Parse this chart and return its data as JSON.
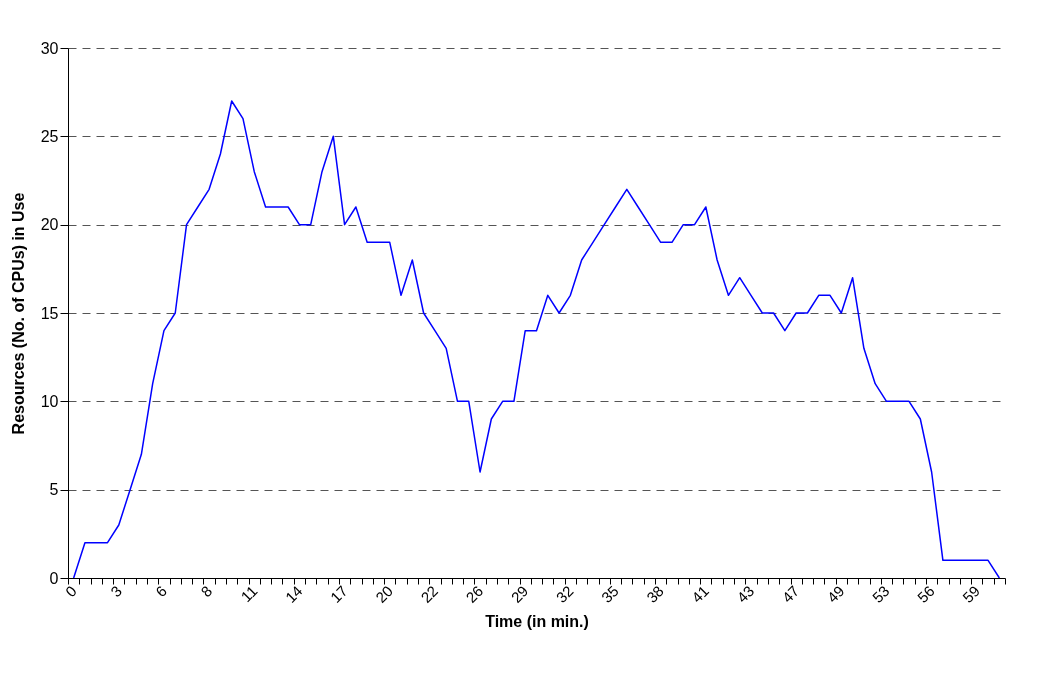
{
  "chart_data": {
    "type": "line",
    "xlabel": "Time (in min.)",
    "ylabel": "Resources (No. of CPUs) in Use",
    "categories": [
      "0",
      null,
      null,
      null,
      "3",
      null,
      null,
      null,
      "6",
      null,
      null,
      null,
      "8",
      null,
      null,
      null,
      "11",
      null,
      null,
      null,
      "14",
      null,
      null,
      null,
      "17",
      null,
      null,
      null,
      "20",
      null,
      null,
      null,
      "22",
      null,
      null,
      null,
      "26",
      null,
      null,
      null,
      "29",
      null,
      null,
      null,
      "32",
      null,
      null,
      null,
      "35",
      null,
      null,
      null,
      "38",
      null,
      null,
      null,
      "41",
      null,
      null,
      null,
      "43",
      null,
      null,
      null,
      "47",
      null,
      null,
      null,
      "49",
      null,
      null,
      null,
      "53",
      null,
      null,
      null,
      "56",
      null,
      null,
      null,
      "59",
      null,
      null
    ],
    "series": [
      {
        "color": "#0000ff",
        "values": [
          0,
          2,
          2,
          2,
          3,
          5,
          7,
          11,
          14,
          15,
          20,
          21,
          22,
          24,
          27,
          26,
          23,
          21,
          21,
          21,
          20,
          20,
          23,
          25,
          20,
          21,
          19,
          19,
          19,
          16,
          18,
          15,
          14,
          13,
          10,
          10,
          6,
          9,
          10,
          10,
          14,
          14,
          16,
          15,
          16,
          18,
          19,
          20,
          21,
          22,
          21,
          20,
          19,
          19,
          20,
          20,
          21,
          18,
          16,
          17,
          16,
          15,
          15,
          14,
          15,
          15,
          16,
          16,
          15,
          17,
          13,
          11,
          10,
          10,
          10,
          9,
          6,
          1,
          1,
          1,
          1,
          1,
          0
        ]
      }
    ],
    "ylim": [
      0,
      30
    ],
    "yticks": [
      0,
      5,
      10,
      15,
      20,
      25,
      30
    ],
    "grid": "y",
    "marker": "none",
    "line_style": "solid"
  }
}
